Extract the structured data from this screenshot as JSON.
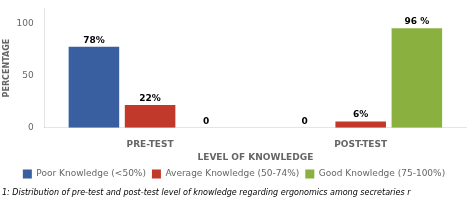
{
  "chart_data": {
    "type": "bar",
    "categories": [
      "PRE-TEST",
      "POST-TEST"
    ],
    "series": [
      {
        "name": "Poor Knowledge (<50%)",
        "color": "#3a5fa0",
        "values": [
          78,
          0
        ],
        "value_labels": [
          "78%",
          "0"
        ]
      },
      {
        "name": "Average Knowledge (50-74%)",
        "color": "#c0392b",
        "values": [
          22,
          6
        ],
        "value_labels": [
          "22%",
          "6%"
        ]
      },
      {
        "name": "Good Knowledge (75-100%)",
        "color": "#8ab040",
        "values": [
          0,
          96
        ],
        "value_labels": [
          "0",
          "96 %"
        ]
      }
    ],
    "xlabel": "LEVEL OF KNOWLEDGE",
    "ylabel": "PERCENTAGE",
    "annotations": [
      "1: Distribution of pre-test and post-test level of knowledge regarding ergonomics among secretaries r"
    ],
    "ylim": [
      0,
      115
    ],
    "yticks": [
      0,
      50,
      100
    ],
    "grid": false,
    "legend": "bottom",
    "data_labels": true
  }
}
